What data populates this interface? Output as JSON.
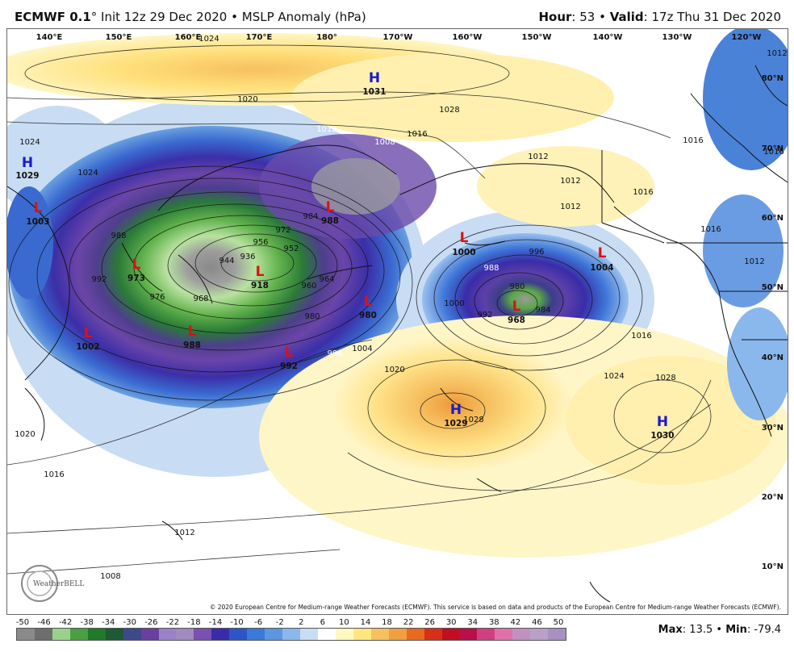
{
  "header": {
    "model": "ECMWF 0.1",
    "degree": "°",
    "init": " Init 12z 29 Dec 2020",
    "sep": " • ",
    "field": "MSLP Anomaly (hPa)",
    "hour_label": "Hour",
    "hour": ": 53",
    "valid_label": "Valid",
    "valid": ": 17z Thu 31 Dec 2020"
  },
  "longitudes": [
    "140°E",
    "150°E",
    "160°E",
    "170°E",
    "180°",
    "170°W",
    "160°W",
    "150°W",
    "140°W",
    "130°W",
    "120°W"
  ],
  "latitudes": [
    "80°N",
    "70°N",
    "60°N",
    "50°N",
    "40°N",
    "30°N",
    "20°N",
    "10°N"
  ],
  "pressure_centers": [
    {
      "type": "H",
      "value": "1031"
    },
    {
      "type": "H",
      "value": "1029"
    },
    {
      "type": "L",
      "value": "1003"
    },
    {
      "type": "L",
      "value": "988"
    },
    {
      "type": "L",
      "value": "973"
    },
    {
      "type": "L",
      "value": "918"
    },
    {
      "type": "L",
      "value": "980"
    },
    {
      "type": "L",
      "value": "1002"
    },
    {
      "type": "L",
      "value": "988"
    },
    {
      "type": "L",
      "value": "992"
    },
    {
      "type": "L",
      "value": "1000"
    },
    {
      "type": "L",
      "value": "1004"
    },
    {
      "type": "L",
      "value": "968"
    },
    {
      "type": "H",
      "value": "1029"
    },
    {
      "type": "H",
      "value": "1030"
    }
  ],
  "isobar_labels": [
    "1024",
    "1020",
    "1028",
    "1016",
    "1012",
    "1008",
    "1024",
    "1024",
    "1012",
    "1016",
    "1012",
    "1016",
    "1012",
    "1016",
    "1012",
    "988",
    "992",
    "976",
    "968",
    "972",
    "956",
    "952",
    "960",
    "964",
    "936",
    "944",
    "984",
    "980",
    "996",
    "1004",
    "1020",
    "1016",
    "1012",
    "1008",
    "1020",
    "988",
    "996",
    "980",
    "992",
    "984",
    "1000",
    "1016",
    "1024",
    "1028",
    "1028",
    "1016",
    "1012"
  ],
  "colorbar": {
    "ticks": [
      "-50",
      "-46",
      "-42",
      "-38",
      "-34",
      "-30",
      "-26",
      "-22",
      "-18",
      "-14",
      "-10",
      "-6",
      "-2",
      "2",
      "6",
      "10",
      "14",
      "18",
      "22",
      "26",
      "30",
      "34",
      "38",
      "42",
      "46",
      "50"
    ],
    "colors": [
      "#8a8a8a",
      "#6e6e6e",
      "#9ad18a",
      "#4aa040",
      "#1f7a2a",
      "#1f5a36",
      "#3c4a8a",
      "#6a3fa0",
      "#9a82c8",
      "#a08ac0",
      "#7a50b0",
      "#3a2ca8",
      "#2e55c8",
      "#3a7ad8",
      "#5c96e0",
      "#8ab8ec",
      "#c8dcf4",
      "#ffffff",
      "#fff8c0",
      "#ffe680",
      "#f6c060",
      "#f0a040",
      "#e86a20",
      "#d83018",
      "#c01020",
      "#b8104a",
      "#d04080",
      "#e070a8",
      "#c090c0",
      "#b8a0c8",
      "#a890c0"
    ]
  },
  "stats": {
    "max_label": "Max",
    "max": ": 13.5",
    "sep": " • ",
    "min_label": "Min",
    "min": ": -79.4"
  },
  "credit": "© 2020 European Centre for Medium-range Weather Forecasts (ECMWF). This service is based on data and products of the European Centre for Medium-range Weather Forecasts (ECMWF).",
  "logo": "WeatherBELL"
}
